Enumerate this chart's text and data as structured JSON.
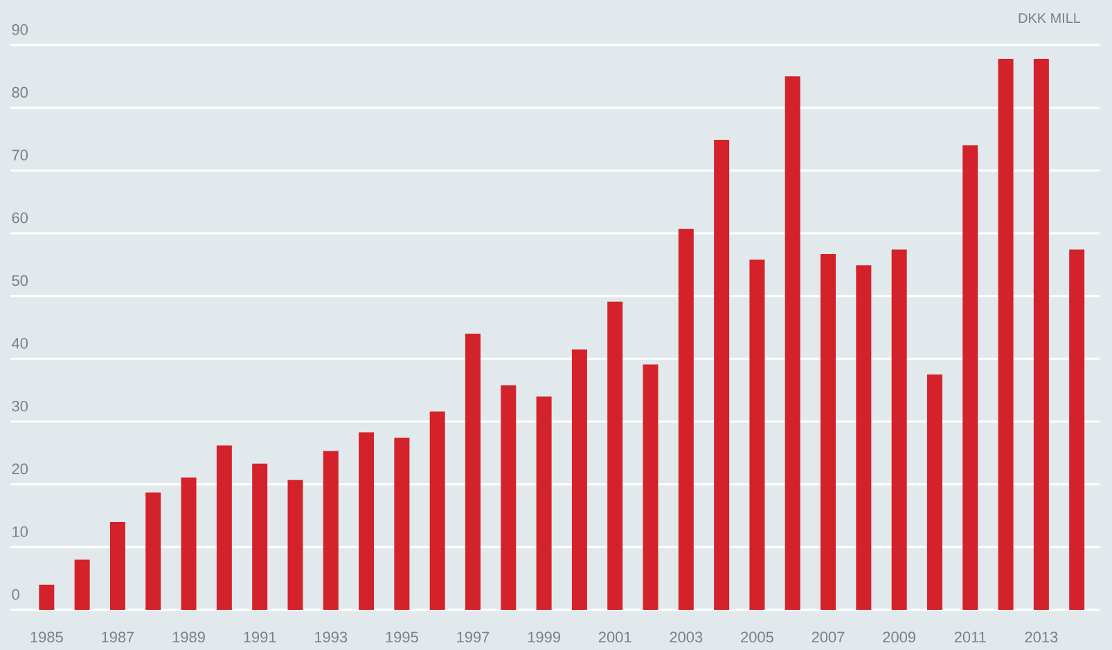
{
  "chart_data": {
    "type": "bar",
    "ylabel": "DKK MILL",
    "categories": [
      "1985",
      null,
      "1987",
      null,
      "1989",
      null,
      "1991",
      null,
      "1993",
      null,
      "1995",
      null,
      "1997",
      null,
      "1999",
      null,
      "2001",
      null,
      "2003",
      null,
      "2005",
      null,
      "2007",
      null,
      "2009",
      null,
      "2011",
      null,
      "2013",
      null
    ],
    "values": [
      4,
      8,
      14,
      18.7,
      21.1,
      26.2,
      23.3,
      20.7,
      25.3,
      28.3,
      27.4,
      31.6,
      44,
      35.8,
      34,
      41.5,
      49.1,
      39.1,
      60.7,
      74.9,
      55.8,
      85,
      56.7,
      54.9,
      57.4,
      37.5,
      74,
      87.8,
      87.8,
      57.4
    ],
    "color": "#d3222a",
    "ylim": [
      0,
      90
    ],
    "yticks": [
      0,
      10,
      20,
      30,
      40,
      50,
      60,
      70,
      80,
      90
    ],
    "grid": "y"
  }
}
